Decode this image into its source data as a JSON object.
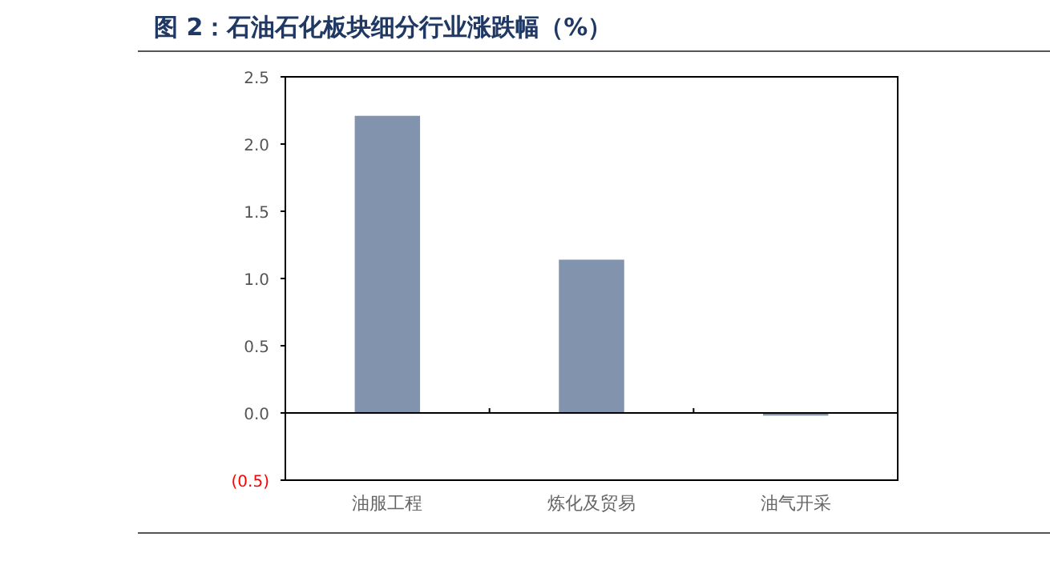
{
  "chart_data": {
    "type": "bar",
    "title": "图 2：石油石化板块细分行业涨跌幅（%）",
    "categories": [
      "油服工程",
      "炼化及贸易",
      "油气开采"
    ],
    "values": [
      2.21,
      1.14,
      -0.02
    ],
    "color": "#8293ae",
    "ylim": [
      -0.5,
      2.5
    ],
    "yticks": [
      {
        "value": -0.5,
        "label": "(0.5)"
      },
      {
        "value": 0,
        "label": "0.0"
      },
      {
        "value": 0.5,
        "label": "0.5"
      },
      {
        "value": 1,
        "label": "1.0"
      },
      {
        "value": 1.5,
        "label": "1.5"
      },
      {
        "value": 2,
        "label": "2.0"
      },
      {
        "value": 2.5,
        "label": "2.5"
      }
    ],
    "legend": false
  }
}
